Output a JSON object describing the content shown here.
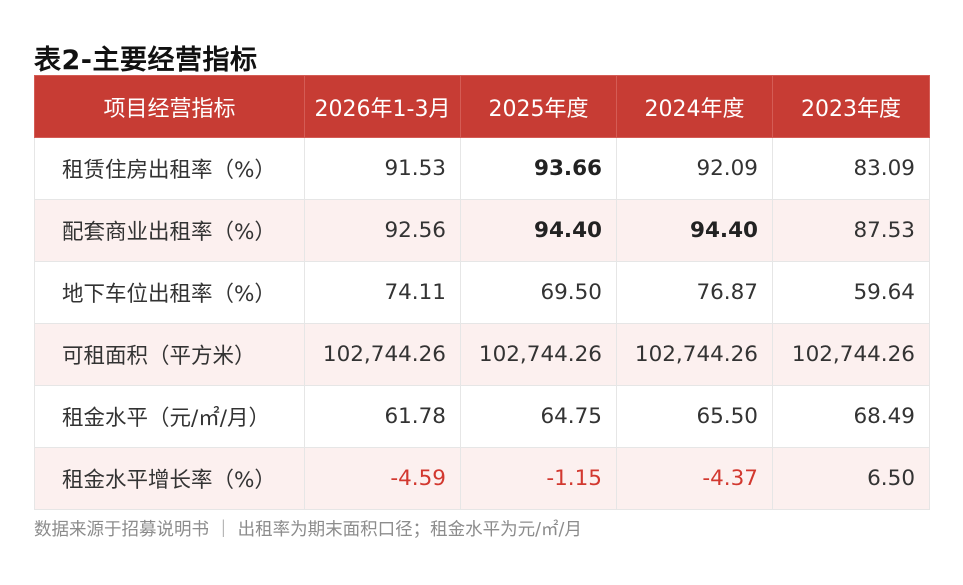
{
  "title": "表2-主要经营指标",
  "table": {
    "headers": [
      "项目经营指标",
      "2026年1-3月",
      "2025年度",
      "2024年度",
      "2023年度"
    ],
    "rows": [
      {
        "label": "租赁住房出租率（%）",
        "values": [
          "91.53",
          "93.66",
          "92.09",
          "83.09"
        ]
      },
      {
        "label": "配套商业出租率（%）",
        "values": [
          "92.56",
          "94.40",
          "94.40",
          "87.53"
        ]
      },
      {
        "label": "地下车位出租率（%）",
        "values": [
          "74.11",
          "69.50",
          "76.87",
          "59.64"
        ]
      },
      {
        "label": "可租面积（平方米）",
        "values": [
          "102,744.26",
          "102,744.26",
          "102,744.26",
          "102,744.26"
        ]
      },
      {
        "label": "租金水平（元/㎡/月）",
        "values": [
          "61.78",
          "64.75",
          "65.50",
          "68.49"
        ]
      },
      {
        "label": "租金水平增长率（%）",
        "values": [
          "-4.59",
          "-1.15",
          "-4.37",
          "6.50"
        ]
      }
    ]
  },
  "note": "数据来源于招募说明书 ｜ 出租率为期末面积口径；租金水平为元/㎡/月",
  "colors": {
    "header_bg": "#c73c34",
    "alt_row_bg": "#fcf0ef",
    "negative": "#d2382f"
  }
}
